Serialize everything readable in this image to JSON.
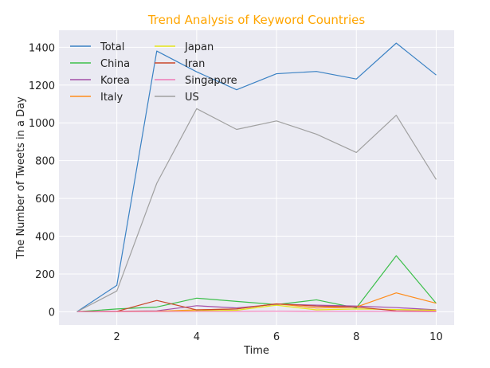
{
  "chart_data": {
    "type": "line",
    "title": "Trend Analysis of Keyword Countries",
    "title_color": "#ffa500",
    "xlabel": "Time",
    "ylabel": "The Number of Tweets in a Day",
    "x": [
      1,
      2,
      3,
      4,
      5,
      6,
      7,
      8,
      9,
      10
    ],
    "xlim": [
      0.55,
      10.45
    ],
    "ylim": [
      -70,
      1490
    ],
    "xticks": [
      2,
      4,
      6,
      8,
      10
    ],
    "yticks": [
      0,
      200,
      400,
      600,
      800,
      1000,
      1200,
      1400
    ],
    "grid": true,
    "legend_position": "top-left",
    "series": [
      {
        "name": "Total",
        "color": "#3b82c4",
        "values": [
          0,
          140,
          1380,
          1270,
          1175,
          1260,
          1272,
          1232,
          1422,
          1253
        ]
      },
      {
        "name": "China",
        "color": "#3cbf4a",
        "values": [
          0,
          15,
          25,
          72,
          55,
          38,
          63,
          20,
          297,
          45
        ]
      },
      {
        "name": "Korea",
        "color": "#a34ea8",
        "values": [
          0,
          3,
          5,
          32,
          20,
          40,
          35,
          30,
          22,
          10
        ]
      },
      {
        "name": "Italy",
        "color": "#ff8c1a",
        "values": [
          0,
          2,
          3,
          10,
          15,
          42,
          20,
          25,
          100,
          45
        ]
      },
      {
        "name": "Japan",
        "color": "#e5e51a",
        "values": [
          0,
          1,
          2,
          5,
          8,
          35,
          10,
          15,
          12,
          8
        ]
      },
      {
        "name": "Iran",
        "color": "#c9482a",
        "values": [
          0,
          2,
          60,
          10,
          15,
          42,
          30,
          25,
          5,
          3
        ]
      },
      {
        "name": "Singapore",
        "color": "#f07ab8",
        "values": [
          0,
          1,
          1,
          2,
          2,
          3,
          2,
          2,
          2,
          1
        ]
      },
      {
        "name": "US",
        "color": "#a0a0a0",
        "values": [
          0,
          110,
          680,
          1075,
          965,
          1010,
          940,
          843,
          1040,
          700
        ]
      }
    ]
  }
}
